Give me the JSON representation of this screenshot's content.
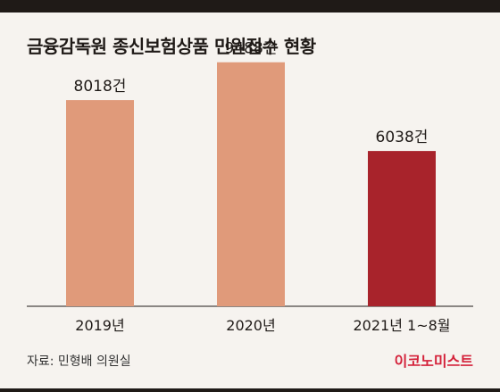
{
  "title": "금융감독원 종신보험상품 민원접수 현황",
  "source": "자료: 민형배 의원실",
  "brand": "이코노미스트",
  "colors": {
    "bar_default": "#e09a7a",
    "bar_highlight": "#a8232b",
    "brand": "#d4213a",
    "background": "#f6f3ef"
  },
  "chart_data": {
    "type": "bar",
    "categories": [
      "2019년",
      "2020년",
      "2021년 1~8월"
    ],
    "values": [
      8018,
      9488,
      6038
    ],
    "value_labels": [
      "8018건",
      "9488건",
      "6038건"
    ],
    "highlight_index": 2,
    "ylim": [
      0,
      10000
    ],
    "grid": false,
    "legend": "none"
  }
}
